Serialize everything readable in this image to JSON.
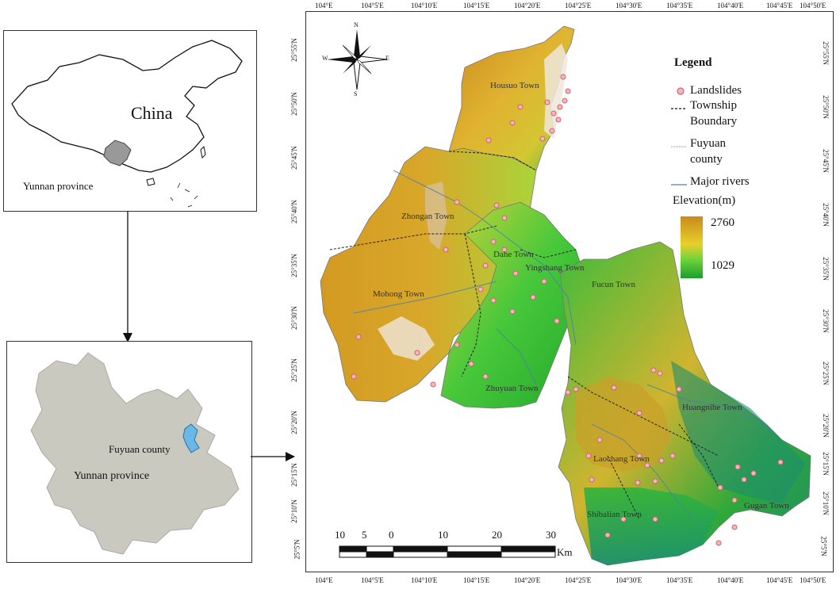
{
  "china_panel": {
    "country_label": "China",
    "province_label": "Yunnan province"
  },
  "yunnan_panel": {
    "county_label": "Fuyuan county",
    "province_label": "Yunnan province"
  },
  "main_map": {
    "top_ticks": [
      "104°E",
      "104°5'E",
      "104°10'E",
      "104°15'E",
      "104°20'E",
      "104°25'E",
      "104°30'E",
      "104°35'E",
      "104°40'E",
      "104°45'E",
      "104°50'E"
    ],
    "bottom_ticks": [
      "104°E",
      "104°5'E",
      "104°10'E",
      "104°15'E",
      "104°20'E",
      "104°25'E",
      "104°30'E",
      "104°35'E",
      "104°40'E",
      "104°45'E",
      "104°50'E"
    ],
    "left_ticks": [
      "25°55'N",
      "25°50'N",
      "25°45'N",
      "25°40'N",
      "25°35'N",
      "25°30'N",
      "25°25'N",
      "25°20'N",
      "25°15'N",
      "25°10'N",
      "25°5'N"
    ],
    "right_ticks": [
      "25°55'N",
      "25°50'N",
      "25°45'N",
      "25°40'N",
      "25°35'N",
      "25°30'N",
      "25°25'N",
      "25°20'N",
      "25°15'N",
      "25°10'N",
      "25°5'N"
    ],
    "compass": {
      "n": "N",
      "s": "S",
      "e": "E",
      "w": "W"
    },
    "towns": [
      {
        "name": "Housuo Town"
      },
      {
        "name": "Zhongan Town"
      },
      {
        "name": "Dahe Town"
      },
      {
        "name": "Yingshang Town"
      },
      {
        "name": "Mohong Town"
      },
      {
        "name": "Fucun Town"
      },
      {
        "name": "Zhuyuan Town"
      },
      {
        "name": "Huangnihe Town"
      },
      {
        "name": "Laochang Town"
      },
      {
        "name": "Gugan Town"
      },
      {
        "name": "Shibalian Town"
      }
    ],
    "scale": {
      "labels": [
        "10",
        "5",
        "0",
        "10",
        "20",
        "30"
      ],
      "unit": "Km"
    }
  },
  "legend": {
    "title": "Legend",
    "landslides": "Landslides",
    "boundary_line1": "Township",
    "boundary_line2": "Boundary",
    "county_line1": "Fuyuan",
    "county_line2": "county",
    "rivers": "Major rivers",
    "elevation_title": "Elevation(m)",
    "elevation_high": "2760",
    "elevation_low": "1029",
    "colors": {
      "high": "#c98a1e",
      "mid": "#e8d02a",
      "low": "#1a9e2c",
      "landslide": "#e87a8a",
      "river": "#4a7fb0"
    }
  }
}
